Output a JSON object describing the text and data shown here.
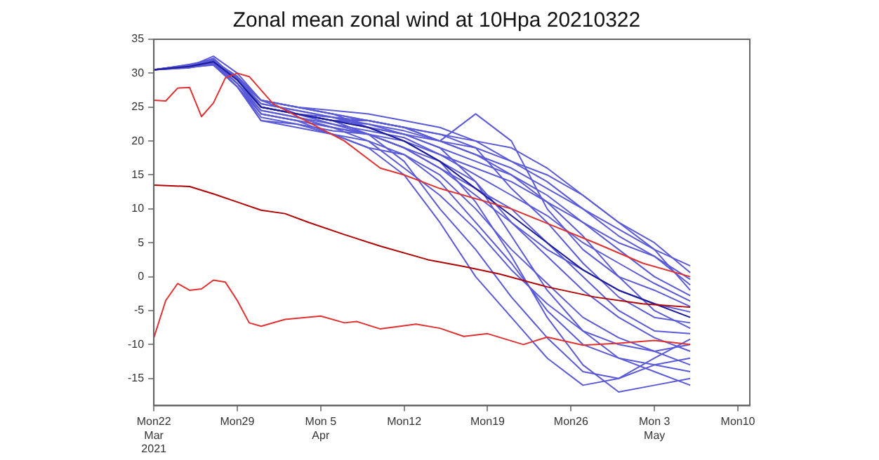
{
  "chart_data": {
    "type": "line",
    "title": "Zonal mean zonal wind at 10Hpa 20210322",
    "legend": false,
    "grid": false,
    "x": [
      "2021-03-22",
      "2021-03-25",
      "2021-03-27",
      "2021-03-29",
      "2021-03-31",
      "2021-04-03",
      "2021-04-06",
      "2021-04-09",
      "2021-04-12",
      "2021-04-15",
      "2021-04-18",
      "2021-04-21",
      "2021-04-24",
      "2021-04-27",
      "2021-04-30",
      "2021-05-03",
      "2021-05-06"
    ],
    "xlim": [
      "2021-03-22",
      "2021-05-11"
    ],
    "xticks": [
      {
        "value": "2021-03-22",
        "label": "Mon22\nMar\n2021"
      },
      {
        "value": "2021-03-29",
        "label": "Mon29"
      },
      {
        "value": "2021-04-05",
        "label": "Mon 5\nApr"
      },
      {
        "value": "2021-04-12",
        "label": "Mon12"
      },
      {
        "value": "2021-04-19",
        "label": "Mon19"
      },
      {
        "value": "2021-04-26",
        "label": "Mon26"
      },
      {
        "value": "2021-05-03",
        "label": "Mon 3\nMay"
      },
      {
        "value": "2021-05-10",
        "label": "Mon10"
      }
    ],
    "ylim": [
      -19,
      35
    ],
    "yticks": [
      -15,
      -10,
      -5,
      0,
      5,
      10,
      15,
      20,
      25,
      30,
      35
    ],
    "series": [
      {
        "color": "#5a5ad8",
        "values": [
          30.5,
          31,
          32,
          29,
          26,
          25,
          24,
          23,
          22,
          20,
          18,
          15,
          12,
          8,
          5,
          3,
          -0.4
        ]
      },
      {
        "color": "#5a5ad8",
        "values": [
          30.5,
          31.2,
          31.8,
          28.5,
          24,
          23,
          22,
          21,
          19,
          16,
          12,
          8,
          4,
          1,
          -2,
          -4,
          -5.2
        ]
      },
      {
        "color": "#5a5ad8",
        "values": [
          30.5,
          30.8,
          31.5,
          29,
          25,
          24,
          23,
          22.5,
          21,
          19,
          14,
          6,
          -2,
          -8,
          -12,
          -14,
          -16
        ]
      },
      {
        "color": "#5a5ad8",
        "values": [
          30.5,
          31,
          32.5,
          30,
          26,
          25,
          24.5,
          24,
          23,
          22,
          20,
          17,
          14,
          10,
          6,
          3,
          -1.2
        ]
      },
      {
        "color": "#5a5ad8",
        "values": [
          30.5,
          31.1,
          31.2,
          28,
          23,
          22,
          21,
          19,
          15,
          8,
          0,
          -6,
          -12,
          -16,
          -15,
          -13,
          -12
        ]
      },
      {
        "color": "#5a5ad8",
        "values": [
          30.5,
          31,
          31.8,
          29.5,
          25,
          24,
          23,
          23,
          22,
          21,
          19,
          13,
          8,
          2,
          -3,
          -6,
          -6.8
        ]
      },
      {
        "color": "#5a5ad8",
        "values": [
          30.5,
          30.9,
          31.4,
          28,
          24,
          23,
          21,
          19,
          18,
          14,
          8,
          2,
          -5,
          -10,
          -12,
          -13,
          -14
        ]
      },
      {
        "color": "#5a5ad8",
        "values": [
          30.5,
          31.3,
          32,
          29,
          26,
          25,
          24,
          22,
          20,
          18,
          16,
          14,
          11,
          8,
          4,
          0,
          -2.8
        ]
      },
      {
        "color": "#5a5ad8",
        "values": [
          30.5,
          31,
          31.6,
          28.5,
          25,
          24,
          22.5,
          21,
          20,
          17,
          11,
          3,
          -6,
          -13,
          -17,
          -16,
          -15
        ]
      },
      {
        "color": "#5a5ad8",
        "values": [
          30.5,
          31.2,
          31.9,
          29,
          25.5,
          24.5,
          23.5,
          22.5,
          21.5,
          20,
          19,
          17,
          15,
          12,
          8,
          4,
          1.6
        ]
      },
      {
        "color": "#5a5ad8",
        "values": [
          30.5,
          30.8,
          31.3,
          28,
          23.5,
          22.5,
          21.5,
          21,
          19,
          16,
          13,
          10,
          5,
          0,
          -5,
          -8,
          -8.4
        ]
      },
      {
        "color": "#5a5ad8",
        "values": [
          30.5,
          31,
          31.7,
          29.5,
          26,
          24,
          23,
          22,
          21,
          20,
          24,
          20,
          10,
          4,
          0,
          -2,
          -4.4
        ]
      },
      {
        "color": "#5a5ad8",
        "values": [
          30.5,
          31.1,
          32.2,
          29,
          25,
          24,
          23,
          21,
          17,
          10,
          4,
          -3,
          -9,
          -14,
          -15,
          -12,
          -9.2
        ]
      },
      {
        "color": "#5a5ad8",
        "values": [
          30.5,
          31,
          31.5,
          28.5,
          24.5,
          23.5,
          22.5,
          21.5,
          20.5,
          18,
          15,
          12,
          9,
          5,
          2,
          -1,
          -3.6
        ]
      },
      {
        "color": "#5a5ad8",
        "values": [
          30.5,
          31.2,
          31.9,
          29.3,
          25,
          24,
          23.5,
          22,
          21,
          19,
          17,
          15,
          11,
          6,
          0,
          -5,
          -7.6
        ]
      },
      {
        "color": "#5a5ad8",
        "values": [
          30.5,
          30.9,
          31.2,
          28,
          23,
          22.5,
          21,
          20,
          18,
          15,
          10,
          4,
          -1,
          -6,
          -9,
          -11,
          -13
        ]
      },
      {
        "color": "#5a5ad8",
        "values": [
          30.5,
          31,
          32,
          29,
          25.5,
          24.5,
          23.5,
          23,
          22,
          20,
          18,
          16,
          13,
          10,
          7,
          4,
          -2
        ]
      },
      {
        "color": "#5a5ad8",
        "values": [
          30.5,
          31.1,
          31.6,
          28.5,
          24,
          23,
          22,
          20,
          16,
          12,
          7,
          1,
          -4,
          -8,
          -10,
          -11,
          -10
        ]
      },
      {
        "color": "#5a5ad8",
        "values": [
          30.5,
          31,
          31.8,
          29.5,
          26,
          25,
          24,
          23,
          22,
          21,
          20,
          19,
          16,
          12,
          8,
          5,
          0.6
        ]
      },
      {
        "color": "#5a5ad8",
        "values": [
          30.5,
          31.2,
          31.4,
          28.5,
          24.5,
          23.5,
          22,
          21,
          19,
          17,
          14,
          8,
          3,
          -2,
          -6,
          -9,
          -11
        ]
      },
      {
        "color": "#1a1a9a",
        "values": [
          30.5,
          31,
          31.7,
          29,
          25,
          24,
          23,
          22,
          20,
          17,
          13,
          9,
          5,
          1,
          -2,
          -4,
          -6
        ]
      },
      {
        "color": "#e03030",
        "x": [
          "2021-03-22",
          "2021-03-23",
          "2021-03-24",
          "2021-03-25",
          "2021-03-26",
          "2021-03-27",
          "2021-03-28",
          "2021-03-29",
          "2021-03-30",
          "2021-04-01",
          "2021-04-07",
          "2021-04-10",
          "2021-04-12",
          "2021-04-15",
          "2021-04-21",
          "2021-04-28",
          "2021-05-02",
          "2021-05-06"
        ],
        "values": [
          26,
          25.9,
          27.8,
          27.9,
          23.6,
          25.6,
          29.3,
          30,
          29.5,
          25.5,
          20,
          16,
          15,
          13,
          10,
          5,
          2,
          0
        ]
      },
      {
        "color": "#b00000",
        "x": [
          "2021-03-22",
          "2021-03-25",
          "2021-03-27",
          "2021-03-29",
          "2021-03-31",
          "2021-04-02",
          "2021-04-04",
          "2021-04-07",
          "2021-04-10",
          "2021-04-14",
          "2021-04-17",
          "2021-04-20",
          "2021-04-24",
          "2021-04-28",
          "2021-05-02",
          "2021-05-06"
        ],
        "values": [
          13.5,
          13.3,
          12.2,
          11,
          9.8,
          9.3,
          8,
          6.2,
          4.5,
          2.5,
          1.5,
          0.4,
          -1.5,
          -3,
          -4,
          -4.5
        ]
      },
      {
        "color": "#e03030",
        "x": [
          "2021-03-22",
          "2021-03-23",
          "2021-03-24",
          "2021-03-25",
          "2021-03-26",
          "2021-03-27",
          "2021-03-28",
          "2021-03-29",
          "2021-03-30",
          "2021-03-31",
          "2021-04-02",
          "2021-04-05",
          "2021-04-07",
          "2021-04-08",
          "2021-04-10",
          "2021-04-13",
          "2021-04-15",
          "2021-04-17",
          "2021-04-19",
          "2021-04-22",
          "2021-04-24",
          "2021-04-27",
          "2021-04-30",
          "2021-05-03",
          "2021-05-06"
        ],
        "values": [
          -9,
          -3.5,
          -1,
          -2,
          -1.8,
          -0.5,
          -0.8,
          -3.5,
          -6.8,
          -7.3,
          -6.3,
          -5.8,
          -6.8,
          -6.6,
          -7.7,
          -7,
          -7.6,
          -8.8,
          -8.4,
          -10,
          -8.9,
          -10.1,
          -9.8,
          -9.4,
          -10
        ]
      }
    ]
  }
}
